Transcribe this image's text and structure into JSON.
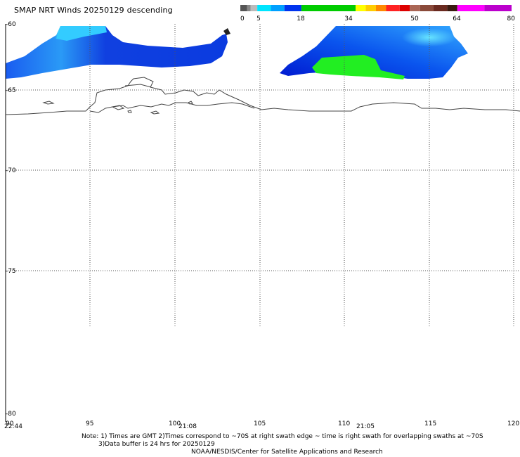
{
  "header": {
    "title": "SMAP NRT Winds  20250129 descending"
  },
  "colorbar": {
    "ticks": [
      "0",
      "5",
      "18",
      "34",
      "50",
      "64",
      "80"
    ],
    "tick_values": [
      0,
      5,
      18,
      34,
      50,
      64,
      80
    ],
    "segments": [
      {
        "from": 0,
        "to": 2,
        "color": "#555555"
      },
      {
        "from": 2,
        "to": 3,
        "color": "#888888"
      },
      {
        "from": 3,
        "to": 5,
        "color": "#bbbbbb"
      },
      {
        "from": 5,
        "to": 9,
        "color": "#00e5ff"
      },
      {
        "from": 9,
        "to": 13,
        "color": "#00a0ff"
      },
      {
        "from": 13,
        "to": 18,
        "color": "#0033ee"
      },
      {
        "from": 18,
        "to": 34,
        "color": "#00cc00"
      },
      {
        "from": 34,
        "to": 37,
        "color": "#ffff00"
      },
      {
        "from": 37,
        "to": 40,
        "color": "#ffcc00"
      },
      {
        "from": 40,
        "to": 43,
        "color": "#ff8800"
      },
      {
        "from": 43,
        "to": 47,
        "color": "#ff2222"
      },
      {
        "from": 47,
        "to": 50,
        "color": "#dd0000"
      },
      {
        "from": 50,
        "to": 53,
        "color": "#aa6655"
      },
      {
        "from": 53,
        "to": 57,
        "color": "#8a4a3a"
      },
      {
        "from": 57,
        "to": 61,
        "color": "#6a2a20"
      },
      {
        "from": 61,
        "to": 64,
        "color": "#3a1a10"
      },
      {
        "from": 64,
        "to": 72,
        "color": "#ff00ff"
      },
      {
        "from": 72,
        "to": 80,
        "color": "#bb00cc"
      }
    ]
  },
  "map": {
    "lat_labels": [
      "-60",
      "-65",
      "-70",
      "-75",
      "-80"
    ],
    "lon_labels": [
      "90",
      "95",
      "100",
      "105",
      "110",
      "115",
      "120"
    ],
    "time_labels": [
      "22:44",
      "21:08",
      "21:05"
    ],
    "colors": {
      "coast": "#444444",
      "grid": "#555555",
      "wind_light": "#33ccff",
      "wind_mid": "#0077ff",
      "wind_dark": "#0022dd",
      "wind_green": "#22ee22"
    }
  },
  "notes": {
    "line1": "Note: 1) Times are GMT 2)Times correspond to ~70S at right swath edge ~ time is right swath for overlapping swaths at ~70S",
    "line2": "3)Data buffer is 24 hrs for 20250129",
    "line3": "NOAA/NESDIS/Center for Satellite Applications and Research"
  }
}
